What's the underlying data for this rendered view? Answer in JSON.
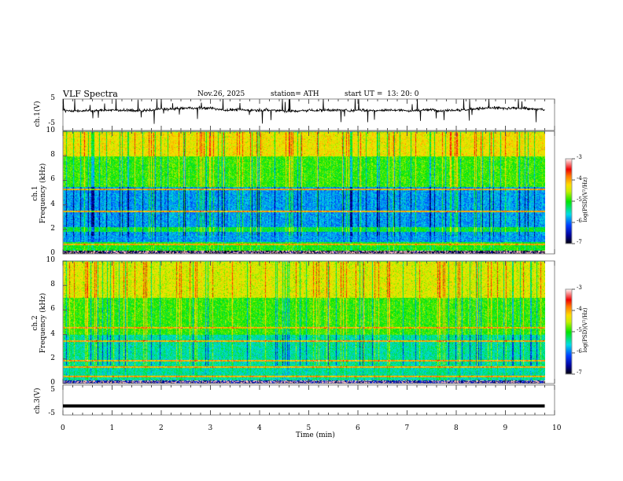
{
  "header": {
    "title": "VLF  Spectra",
    "date": "Nov.26, 2025",
    "station": "station= ATH",
    "start_ut_label": "start  UT  =",
    "start_ut": "13: 20: 0"
  },
  "chart_data": [
    {
      "type": "line",
      "name": "ch1-waveform",
      "ylabel": "ch.1(V)",
      "ylim": [
        -5,
        5
      ],
      "yticks": [
        "5",
        "-5"
      ],
      "xlim": [
        0,
        10
      ],
      "x_data_end": 9.8,
      "description_values": {
        "baseline_V": 0.5,
        "noise_V": 1,
        "spike_max_V": 5
      }
    },
    {
      "type": "heatmap",
      "name": "ch1-spectrogram",
      "ylabel_line1": "ch.1",
      "ylabel_line2": "Frequency  (kHz)",
      "ylim": [
        0,
        10
      ],
      "yticks": [
        "0",
        "2",
        "4",
        "6",
        "8",
        "10"
      ],
      "xlim": [
        0,
        10
      ],
      "x_data_end": 9.8,
      "colorbar": {
        "label": "log(PSD)(V²/Hz)",
        "range": [
          -7,
          -3
        ],
        "ticks": [
          "-3",
          "-4",
          "-5",
          "-6",
          "-7"
        ]
      },
      "band_levels": [
        {
          "f": [
            8,
            10
          ],
          "log_psd": -4.3
        },
        {
          "f": [
            5.5,
            8
          ],
          "log_psd": -4.9
        },
        {
          "f": [
            2.2,
            5.5
          ],
          "log_psd": -5.8
        },
        {
          "f": [
            1.8,
            2.2
          ],
          "log_psd": -5.1
        },
        {
          "f": [
            1.0,
            1.8
          ],
          "log_psd": -5.8
        },
        {
          "f": [
            0.3,
            1.0
          ],
          "log_psd": -5.0
        },
        {
          "f": [
            0,
            0.3
          ],
          "log_psd": -6.8
        }
      ],
      "lines_kHz": [
        5.3,
        3.5,
        0.8
      ]
    },
    {
      "type": "heatmap",
      "name": "ch2-spectrogram",
      "ylabel_line1": "ch.2",
      "ylabel_line2": "Frequency  (kHz)",
      "ylim": [
        0,
        10
      ],
      "yticks": [
        "0",
        "2",
        "4",
        "6",
        "8",
        "10"
      ],
      "xlim": [
        0,
        10
      ],
      "x_data_end": 9.8,
      "colorbar": {
        "label": "log(PSD)(V²/Hz)",
        "range": [
          -7,
          -3
        ],
        "ticks": [
          "-3",
          "-4",
          "-5",
          "-6",
          "-7"
        ]
      },
      "band_levels": [
        {
          "f": [
            7,
            10
          ],
          "log_psd": -4.4
        },
        {
          "f": [
            4,
            7
          ],
          "log_psd": -4.9
        },
        {
          "f": [
            0.3,
            4
          ],
          "log_psd": -5.4
        },
        {
          "f": [
            0,
            0.3
          ],
          "log_psd": -6.5
        }
      ],
      "lines_kHz": [
        4.6,
        3.5,
        1.9,
        1.4,
        0.6
      ]
    },
    {
      "type": "line",
      "name": "ch3-waveform",
      "ylabel": "ch.3(V)",
      "ylim": [
        -5,
        5
      ],
      "yticks": [
        "5",
        "-5"
      ],
      "xlim": [
        0,
        10
      ],
      "x_data_end": 9.8,
      "description_values": {
        "baseline_V": -1.5
      }
    }
  ],
  "xaxis": {
    "label": "Time  (min)",
    "ticks": [
      "0",
      "1",
      "2",
      "3",
      "4",
      "5",
      "6",
      "7",
      "8",
      "9",
      "10"
    ]
  }
}
